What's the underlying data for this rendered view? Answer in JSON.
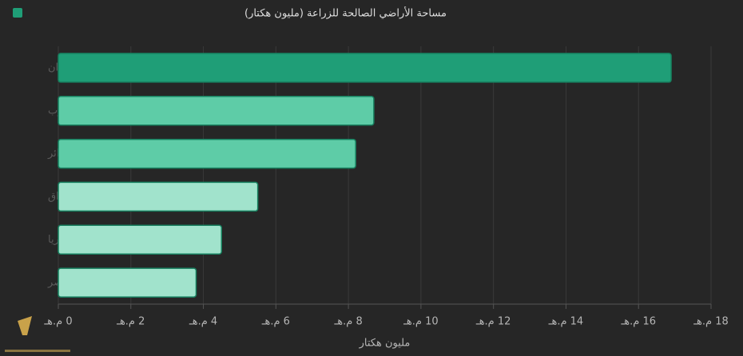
{
  "chart_data": {
    "type": "hbar",
    "title": "مساحة الأراضي الصالحة للزراعة (مليون هكتار)",
    "categories": [
      "السودان",
      "المغرب",
      "الجزائر",
      "العراق",
      "سوريا",
      "مصر"
    ],
    "values": [
      16.9,
      8.7,
      8.2,
      5.5,
      4.5,
      3.8
    ],
    "colors": [
      "#1f9e77",
      "#5ecca7",
      "#5ecca7",
      "#a1e3cc",
      "#a1e3cc",
      "#a1e3cc"
    ],
    "legend_color": "#1f9e77",
    "x_label": "مليون هكتار",
    "xlim": [
      0,
      18.5
    ],
    "xticks": [
      {
        "value": 0,
        "label": "0 م.هـ"
      },
      {
        "value": 2,
        "label": "2 م.هـ"
      },
      {
        "value": 4,
        "label": "4 م.هـ"
      },
      {
        "value": 6,
        "label": "6 م.هـ"
      },
      {
        "value": 8,
        "label": "8 م.هـ"
      },
      {
        "value": 10,
        "label": "10 م.هـ"
      },
      {
        "value": 12,
        "label": "12 م.هـ"
      },
      {
        "value": 14,
        "label": "14 م.هـ"
      },
      {
        "value": 16,
        "label": "16 م.هـ"
      },
      {
        "value": 18,
        "label": "18 م.هـ"
      }
    ],
    "grid": true
  }
}
